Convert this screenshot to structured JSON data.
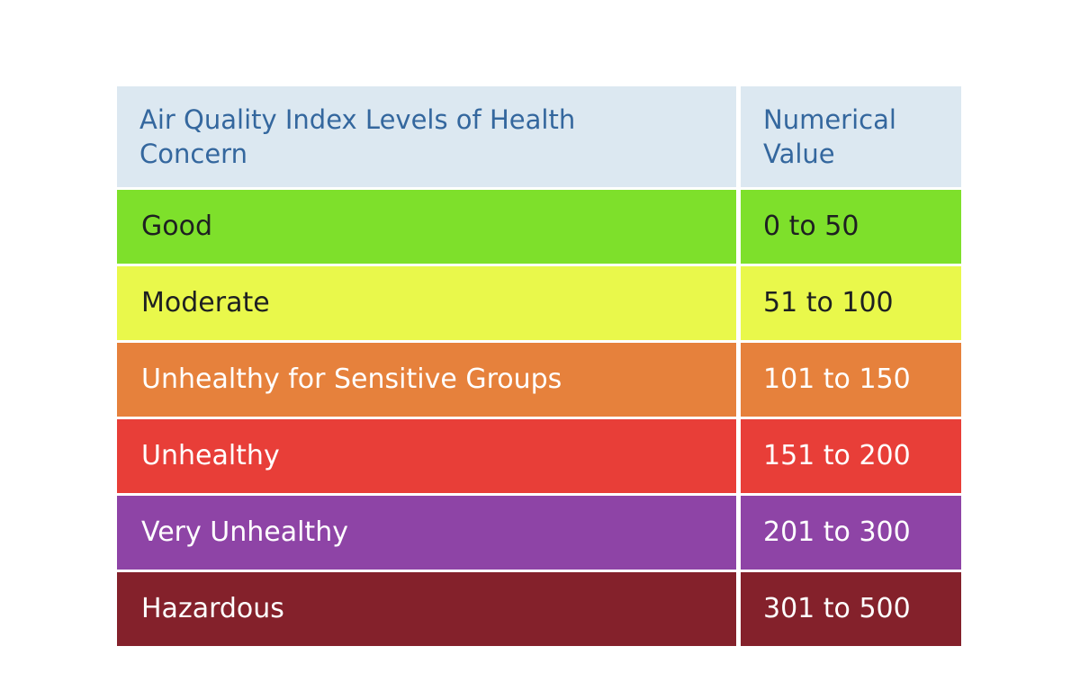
{
  "table": {
    "header_bg": "#dce8f1",
    "header_text_color": "#34679e",
    "gap_color": "#ffffff",
    "headers": [
      {
        "label": "Air Quality Index Levels of Health Concern"
      },
      {
        "label": "Numerical Value"
      }
    ],
    "rows": [
      {
        "level": "Good",
        "range": "0 to 50",
        "bg": "#7ee02b",
        "text_color": "#1e2021"
      },
      {
        "level": "Moderate",
        "range": "51 to 100",
        "bg": "#e9f84b",
        "text_color": "#1e2021"
      },
      {
        "level": "Unhealthy for Sensitive Groups",
        "range": "101 to 150",
        "bg": "#e6813c",
        "text_color": "#ffffff"
      },
      {
        "level": "Unhealthy",
        "range": "151 to 200",
        "bg": "#e83e38",
        "text_color": "#ffffff"
      },
      {
        "level": "Very Unhealthy",
        "range": "201 to 300",
        "bg": "#8e44a6",
        "text_color": "#ffffff"
      },
      {
        "level": "Hazardous",
        "range": "301 to 500",
        "bg": "#84212b",
        "text_color": "#ffffff"
      }
    ]
  },
  "chart_data": {
    "type": "table",
    "title": "Air Quality Index Levels of Health Concern",
    "columns": [
      "Air Quality Index Levels of Health Concern",
      "Numerical Value"
    ],
    "rows": [
      {
        "level": "Good",
        "range_label": "0 to 50",
        "range": [
          0,
          50
        ],
        "color": "#7ee02b"
      },
      {
        "level": "Moderate",
        "range_label": "51 to 100",
        "range": [
          51,
          100
        ],
        "color": "#e9f84b"
      },
      {
        "level": "Unhealthy for Sensitive Groups",
        "range_label": "101 to 150",
        "range": [
          101,
          150
        ],
        "color": "#e6813c"
      },
      {
        "level": "Unhealthy",
        "range_label": "151 to 200",
        "range": [
          151,
          200
        ],
        "color": "#e83e38"
      },
      {
        "level": "Very Unhealthy",
        "range_label": "201 to 300",
        "range": [
          201,
          300
        ],
        "color": "#8e44a6"
      },
      {
        "level": "Hazardous",
        "range_label": "301 to 500",
        "range": [
          301,
          500
        ],
        "color": "#84212b"
      }
    ]
  }
}
